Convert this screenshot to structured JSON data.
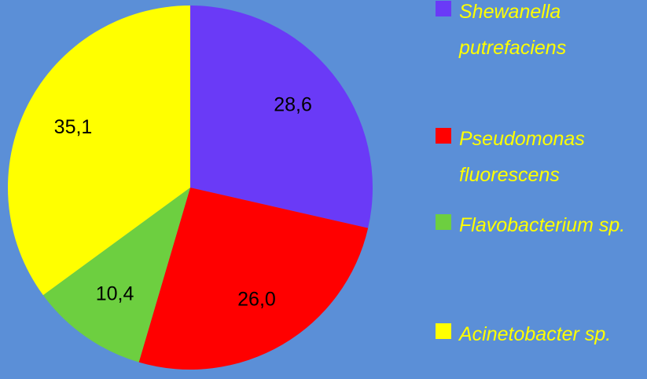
{
  "chart_data": {
    "type": "pie",
    "categories": [
      "Shewanella putrefaciens",
      "Pseudomonas fluorescens",
      "Flavobacterium sp.",
      "Acinetobacter sp."
    ],
    "values": [
      28.6,
      26.0,
      10.4,
      35.1
    ],
    "value_labels": [
      "28,6",
      "26,0",
      "10,4",
      "35,1"
    ],
    "colors": [
      "#6a3af7",
      "#ff0000",
      "#6dcf40",
      "#ffff00"
    ],
    "legend": "right"
  }
}
